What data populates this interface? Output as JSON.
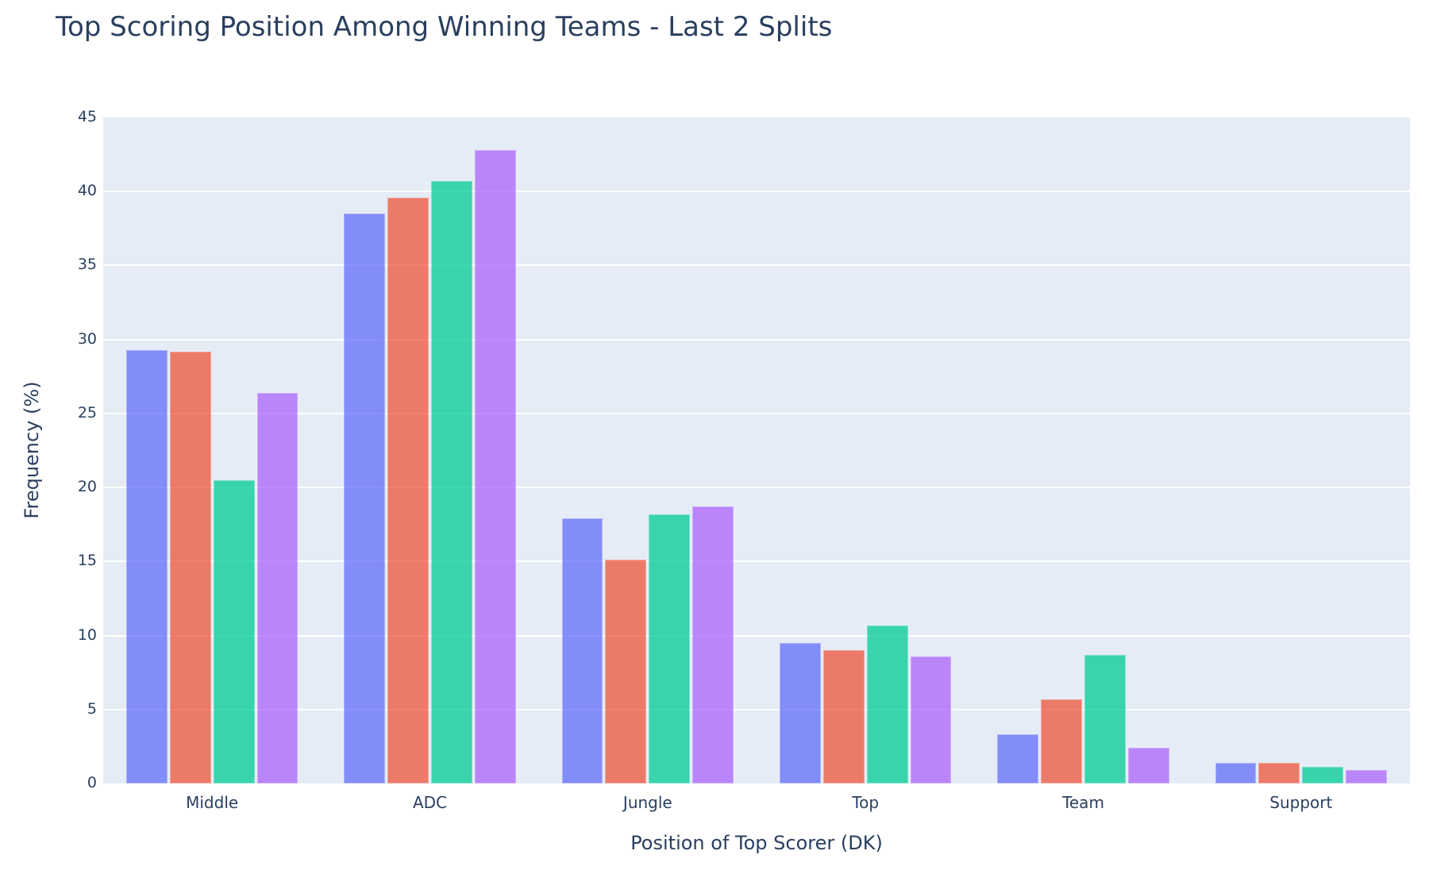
{
  "chart_data": {
    "type": "bar",
    "title": "Top Scoring Position Among Winning Teams - Last 2 Splits",
    "xlabel": "Position of Top Scorer (DK)",
    "ylabel": "Frequency (%)",
    "ylim": [
      0,
      45
    ],
    "yticks": [
      0,
      5,
      10,
      15,
      20,
      25,
      30,
      35,
      40,
      45
    ],
    "grid": true,
    "legend": "none shown",
    "barmode": "group",
    "categories": [
      "Middle",
      "ADC",
      "Jungle",
      "Top",
      "Team",
      "Support"
    ],
    "series": [
      {
        "name": "Series 1",
        "color": "#636efa",
        "values": [
          29.3,
          38.5,
          17.9,
          9.5,
          3.3,
          1.4
        ]
      },
      {
        "name": "Series 2",
        "color": "#ef553b",
        "values": [
          29.2,
          39.6,
          15.1,
          9.0,
          5.7,
          1.4
        ]
      },
      {
        "name": "Series 3",
        "color": "#00cc96",
        "values": [
          20.5,
          40.7,
          18.2,
          10.7,
          8.7,
          1.1
        ]
      },
      {
        "name": "Series 4",
        "color": "#ab63fa",
        "values": [
          26.4,
          42.8,
          18.7,
          8.6,
          2.4,
          0.9
        ]
      }
    ]
  }
}
